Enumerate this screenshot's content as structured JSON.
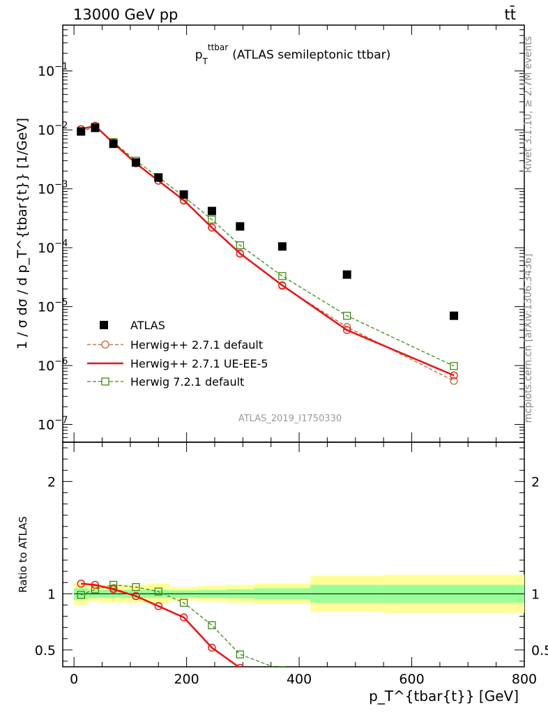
{
  "header": {
    "left": "13000 GeV pp",
    "right": "tt̄"
  },
  "side_labels": {
    "rivet": "Rivet 3.1.10, ≥ 2.7M events",
    "mcplots": "mcplots.cern.ch [arXiv:1306.3436]"
  },
  "watermark": "ATLAS_2019_I1750330",
  "chart_data": [
    {
      "type": "line",
      "title": {
        "symbol": "p",
        "sub": "T",
        "sup": "ttbar",
        "rest": "(ATLAS semileptonic ttbar)"
      },
      "ylabel": "1 / σ dσ / d p_T^{tbar{t}} [1/GeV]",
      "yscale": "log",
      "ylim": [
        5e-08,
        0.6
      ],
      "xlim": [
        -20,
        800
      ],
      "y_ticks": [
        {
          "value": 1e-07,
          "base": "10",
          "exp": "−7"
        },
        {
          "value": 1e-06,
          "base": "10",
          "exp": "−6"
        },
        {
          "value": 1e-05,
          "base": "10",
          "exp": "−5"
        },
        {
          "value": 0.0001,
          "base": "10",
          "exp": "−4"
        },
        {
          "value": 0.001,
          "base": "10",
          "exp": "−3"
        },
        {
          "value": 0.01,
          "base": "10",
          "exp": "−2"
        },
        {
          "value": 0.1,
          "base": "10",
          "exp": "−1"
        }
      ],
      "legend_position": "bottom-left",
      "x": [
        12.5,
        37.5,
        70,
        110,
        150,
        195,
        245,
        295,
        370,
        485,
        675
      ],
      "series": [
        {
          "name": "ATLAS",
          "style": "data",
          "color": "#000000",
          "values": [
            0.0094,
            0.0108,
            0.0058,
            0.0028,
            0.00155,
            0.0008,
            0.00042,
            0.00023,
            0.000105,
            3.5e-05,
            7e-06
          ]
        },
        {
          "name": "Herwig++ 2.7.1 default",
          "style": "circle-dashed",
          "color": "#b8632a",
          "values": [
            0.0102,
            0.0116,
            0.0061,
            0.00275,
            0.00138,
            0.00063,
            0.00022,
            7.9e-05,
            2.25e-05,
            4.5e-06,
            5.5e-07
          ]
        },
        {
          "name": "Herwig++ 2.7.1 UE-EE-5",
          "style": "solid",
          "color": "#ee1111",
          "values": [
            0.0103,
            0.0117,
            0.006,
            0.0027,
            0.00137,
            0.00064,
            0.00022,
            8e-05,
            2.3e-05,
            4e-06,
            6.8e-07
          ]
        },
        {
          "name": "Herwig 7.2.1 default",
          "style": "square-dashed",
          "color": "#3a8a14",
          "values": [
            0.0093,
            0.0113,
            0.0062,
            0.003,
            0.00158,
            0.00074,
            0.0003,
            0.00011,
            3.3e-05,
            7e-06,
            9.8e-07
          ]
        }
      ]
    },
    {
      "type": "line",
      "ylabel": "Ratio to ATLAS",
      "xlabel": "p_T^{tbar{t}} [GeV]",
      "ylim": [
        0.35,
        2.35
      ],
      "xlim": [
        -20,
        800
      ],
      "y_ticks": [
        "0.5",
        "1",
        "2"
      ],
      "y_tick_values": [
        0.5,
        1,
        2
      ],
      "x_ticks": [
        "0",
        "200",
        "400",
        "600",
        "800"
      ],
      "x_tick_values": [
        0,
        200,
        400,
        600,
        800
      ],
      "bands": {
        "edges": [
          0,
          25,
          50,
          90,
          130,
          170,
          220,
          270,
          320,
          420,
          550,
          800
        ],
        "inner": [
          0.05,
          0.035,
          0.035,
          0.035,
          0.035,
          0.03,
          0.035,
          0.04,
          0.05,
          0.08,
          0.08
        ],
        "outer": [
          0.1,
          0.07,
          0.08,
          0.08,
          0.09,
          0.06,
          0.07,
          0.08,
          0.09,
          0.16,
          0.17
        ],
        "inner_color": "#99ff99",
        "outer_color": "#ffff99"
      },
      "x": [
        12.5,
        37.5,
        70,
        110,
        150,
        195,
        245,
        295,
        370,
        485,
        675
      ],
      "series": [
        {
          "name": "Herwig++ 2.7.1 default",
          "style": "circle-dashed",
          "color": "#b8632a",
          "values": [
            1.09,
            1.08,
            1.05,
            0.98,
            0.89,
            0.79,
            0.52,
            0.34,
            null,
            null,
            null
          ]
        },
        {
          "name": "Herwig++ 2.7.1 UE-EE-5",
          "style": "solid",
          "color": "#ee1111",
          "values": [
            1.09,
            1.08,
            1.04,
            0.98,
            0.89,
            0.79,
            0.52,
            0.34,
            null,
            null,
            null
          ]
        },
        {
          "name": "Herwig 7.2.1 default",
          "style": "square-dashed",
          "color": "#3a8a14",
          "values": [
            0.99,
            1.04,
            1.08,
            1.06,
            1.02,
            0.92,
            0.72,
            0.46,
            0.32,
            null,
            null
          ]
        }
      ]
    }
  ]
}
